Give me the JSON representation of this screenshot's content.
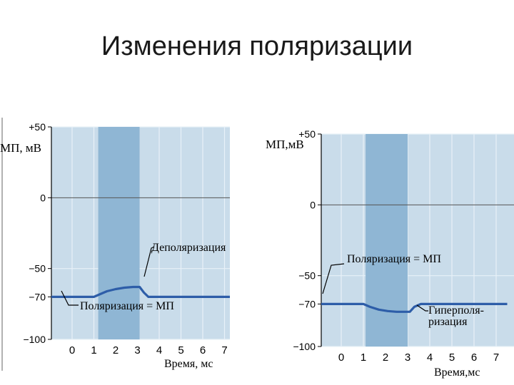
{
  "slide": {
    "title": "Изменения поляризации"
  },
  "chart_data": [
    {
      "type": "line",
      "title": "",
      "xlabel": "Время, мс",
      "ylabel": "МП, мВ",
      "xlim": [
        -1,
        7.5
      ],
      "ylim": [
        -100,
        50
      ],
      "x_ticks": [
        "0",
        "1",
        "2",
        "3",
        "4",
        "5",
        "6",
        "7"
      ],
      "y_ticks": [
        "+50",
        "0",
        "−50",
        "−70",
        "−100"
      ],
      "stimulus_window": [
        1.2,
        3.1
      ],
      "grid": true,
      "series": [
        {
          "x": [
            -1,
            0,
            1,
            1.3,
            1.6,
            2,
            2.4,
            2.8,
            3.1,
            3.3,
            3.5,
            4,
            5,
            6,
            7.5
          ],
          "y": [
            -70,
            -70,
            -70,
            -68,
            -66,
            -64.5,
            -63.5,
            -63,
            -63,
            -67,
            -70,
            -70,
            -70,
            -70,
            -70
          ]
        }
      ],
      "annotations": [
        {
          "text": "Деполяризация",
          "x": 3.1,
          "y": -63
        },
        {
          "text": "Поляризация = МП",
          "x": 0.2,
          "y": -70
        }
      ],
      "colors": {
        "plot_bg": "#c9dcea",
        "band": "#8fb6d4",
        "grid": "#e8f1f8",
        "line": "#2d5da8",
        "axis": "#000000"
      }
    },
    {
      "type": "line",
      "title": "",
      "xlabel": "Время,мс",
      "ylabel": "МП,мВ",
      "xlim": [
        -1,
        7.5
      ],
      "ylim": [
        -100,
        50
      ],
      "x_ticks": [
        "0",
        "1",
        "2",
        "3",
        "4",
        "5",
        "6",
        "7"
      ],
      "y_ticks": [
        "+50",
        "0",
        "−50",
        "−70",
        "−100"
      ],
      "stimulus_window": [
        1.1,
        3.0
      ],
      "grid": true,
      "series": [
        {
          "x": [
            -1,
            0,
            1,
            1.3,
            1.7,
            2.1,
            2.5,
            2.9,
            3.1,
            3.3,
            3.6,
            4,
            5,
            6,
            7.5
          ],
          "y": [
            -70,
            -70,
            -70,
            -72,
            -74,
            -75,
            -75.5,
            -75.5,
            -75.5,
            -72,
            -70,
            -70,
            -70,
            -70,
            -70
          ]
        }
      ],
      "annotations": [
        {
          "text": "Поляризация = МП",
          "x": -1,
          "y": -70
        },
        {
          "text": "Гиперполя-",
          "x": 3.0,
          "y": -75.5
        },
        {
          "text": "ризация",
          "x": 3.0,
          "y": -75.5
        }
      ],
      "colors": {
        "plot_bg": "#c9dcea",
        "band": "#8fb6d4",
        "grid": "#e8f1f8",
        "line": "#2d5da8",
        "axis": "#000000"
      }
    }
  ]
}
